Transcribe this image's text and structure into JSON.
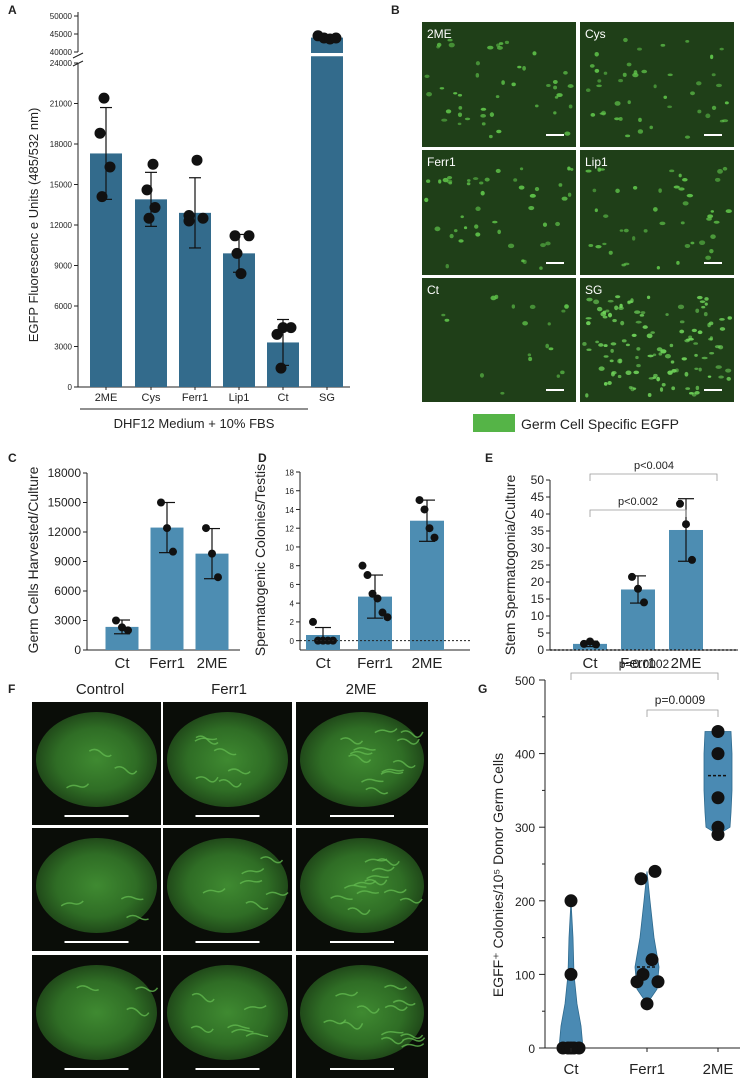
{
  "colors": {
    "bar_dark": "#336b8c",
    "bar_light": "#4d8db2",
    "violin": "#4a8ab3",
    "egfp": "#55b447"
  },
  "panels": {
    "A": "A",
    "B": "B",
    "C": "C",
    "D": "D",
    "E": "E",
    "F": "F",
    "G": "G"
  },
  "panelB": {
    "labels": [
      "2ME",
      "Cys",
      "Ferr1",
      "Lip1",
      "Ct",
      "SG"
    ],
    "legend": "Germ Cell Specific EGFP"
  },
  "panelF": {
    "columns": [
      "Control",
      "Ferr1",
      "2ME"
    ]
  },
  "chart_data": [
    {
      "id": "A",
      "type": "bar",
      "ylabel": "EGFP  Fluorescenc e Units  (485/532  nm)",
      "xlabel": "DHF12 Medium + 10% FBS",
      "categories": [
        "2ME",
        "Cys",
        "Ferr1",
        "Lip1",
        "Ct",
        "SG"
      ],
      "values": [
        17300,
        13900,
        12900,
        9900,
        3300,
        44000
      ],
      "errors": [
        3400,
        2000,
        2600,
        1400,
        1700,
        null
      ],
      "points": [
        [
          21400,
          18800,
          16300,
          14100
        ],
        [
          16500,
          14600,
          13300,
          12500
        ],
        [
          16800,
          12700,
          12500,
          12300
        ],
        [
          11200,
          11200,
          9900,
          8400
        ],
        [
          4400,
          4400,
          1400,
          3900
        ],
        [
          44500,
          43900,
          43600,
          43900
        ]
      ],
      "yticks": [
        "0",
        "3000",
        "6000",
        "9000",
        "12000",
        "15000",
        "18000",
        "21000",
        "24000"
      ],
      "yticks_break": [
        "40000",
        "45000",
        "50000"
      ],
      "ylim": [
        0,
        50000
      ],
      "axis_break": [
        24800,
        40000
      ]
    },
    {
      "id": "C",
      "type": "bar",
      "ylabel": "Germ Cells Harvested/Culture",
      "categories": [
        "Ct",
        "Ferr1",
        "2ME"
      ],
      "values": [
        2350,
        12450,
        9800
      ],
      "errors": [
        700,
        2550,
        2550
      ],
      "points": [
        [
          3000,
          2300,
          2000
        ],
        [
          15000,
          12400,
          10000
        ],
        [
          12400,
          9800,
          7400
        ]
      ],
      "yticks": [
        "0",
        "3000",
        "6000",
        "9000",
        "12000",
        "15000",
        "18000"
      ],
      "ylim": [
        0,
        18000
      ]
    },
    {
      "id": "D",
      "type": "bar",
      "ylabel": "Spermatogenic  Colonies/Testis",
      "categories": [
        "Ct",
        "Ferr1",
        "2ME"
      ],
      "values": [
        0.6,
        4.7,
        12.8
      ],
      "errors": [
        0.8,
        2.3,
        2.2
      ],
      "points": [
        [
          2.0,
          0,
          0,
          0,
          0
        ],
        [
          8.0,
          7.0,
          5.0,
          4.5,
          3.0,
          2.5
        ],
        [
          15.0,
          14.0,
          12.0,
          11.0
        ]
      ],
      "yticks": [
        "0",
        "2",
        "4",
        "6",
        "8",
        "10",
        "12",
        "14",
        "16",
        "18"
      ],
      "ylim": [
        -1,
        18
      ]
    },
    {
      "id": "E",
      "type": "bar",
      "ylabel": "Stem Spermatogonia/Culture",
      "categories": [
        "Ct",
        "Ferr1",
        "2ME"
      ],
      "values": [
        1.8,
        17.8,
        35.3
      ],
      "errors": [
        0.8,
        4.0,
        9.2
      ],
      "points": [
        [
          1.8,
          2.5,
          1.6
        ],
        [
          21.5,
          18.0,
          14.0
        ],
        [
          43.0,
          37.0,
          26.5
        ]
      ],
      "yticks": [
        "0",
        "5",
        "10",
        "15",
        "20",
        "25",
        "30",
        "35",
        "40",
        "45",
        "50"
      ],
      "ylim": [
        0,
        50
      ],
      "annotations": [
        "p<0.002",
        "p<0.004"
      ]
    },
    {
      "id": "G",
      "type": "violin",
      "ylabel": "EGFF⁺ Colonies/10⁵ Donor Germ Cells",
      "categories": [
        "Ct",
        "Ferr1",
        "2ME"
      ],
      "points": [
        [
          200,
          100,
          0,
          0,
          0,
          0,
          0
        ],
        [
          240,
          230,
          120,
          90,
          100,
          90,
          60
        ],
        [
          430,
          400,
          340,
          300,
          290
        ]
      ],
      "medians": [
        0,
        110,
        370
      ],
      "yticks": [
        "0",
        "100",
        "200",
        "300",
        "400",
        "500"
      ],
      "ylim": [
        0,
        500
      ],
      "annotations": [
        "p=0.0002",
        "p=0.0009"
      ]
    }
  ]
}
